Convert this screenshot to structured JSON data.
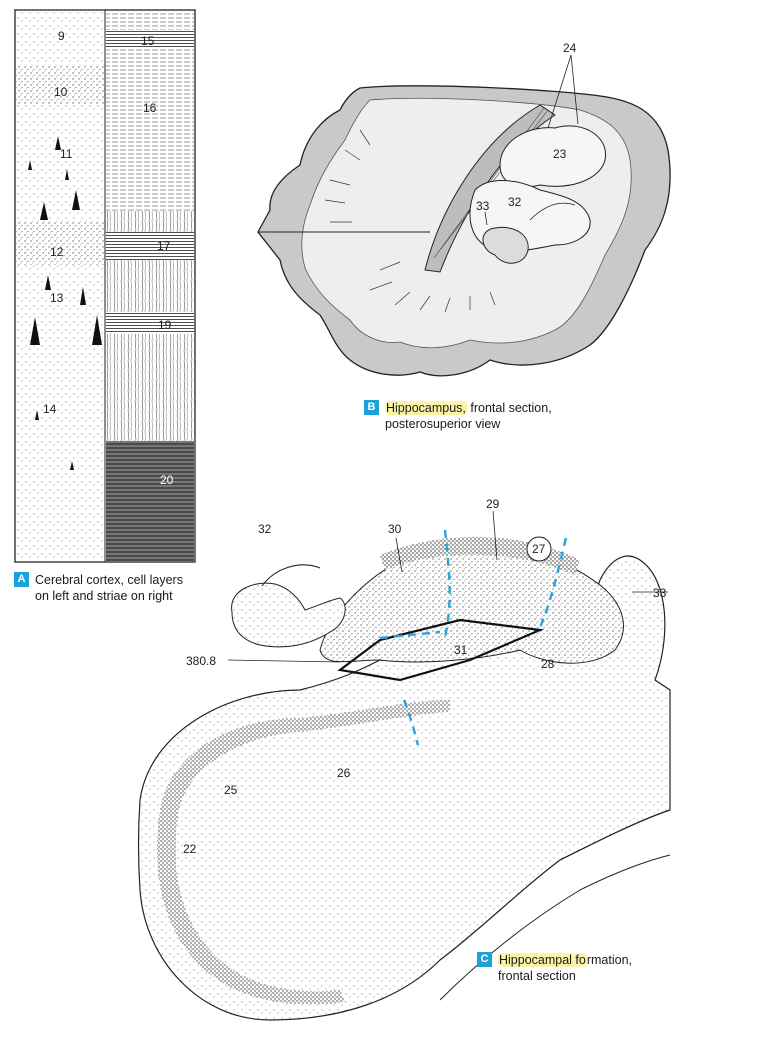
{
  "colors": {
    "badge": "#1da1d8",
    "highlight": "#fbf3a5",
    "ink": "#1a1a1a",
    "gray_matter": "#c9c9c9",
    "white_matter": "#eeeeee",
    "dashed_boundary": "#2fa6d6"
  },
  "panel_a": {
    "badge": "A",
    "caption_line1": "Cerebral cortex, cell layers",
    "caption_line2": "on left and striae on right",
    "layer_labels": [
      "9",
      "10",
      "11",
      "12",
      "13",
      "14"
    ],
    "stria_labels": [
      "15",
      "16",
      "17",
      "19",
      "20"
    ]
  },
  "panel_b": {
    "badge": "B",
    "caption_highlight": "Hippocampus,",
    "caption_rest": " frontal section,",
    "caption_line2": "posterosuperior view",
    "labels": [
      "24",
      "23",
      "33",
      "32"
    ]
  },
  "panel_c": {
    "badge": "C",
    "caption_highlight": "Hippocampal fo",
    "caption_rest": "rmation,",
    "caption_line2": "frontal section",
    "labels": {
      "l32": "32",
      "l30": "30",
      "l29": "29",
      "l27": "27",
      "l33": "33",
      "l31": "31",
      "l28": "28",
      "l380": "380.8",
      "l26": "26",
      "l25": "25",
      "l22": "22"
    }
  }
}
